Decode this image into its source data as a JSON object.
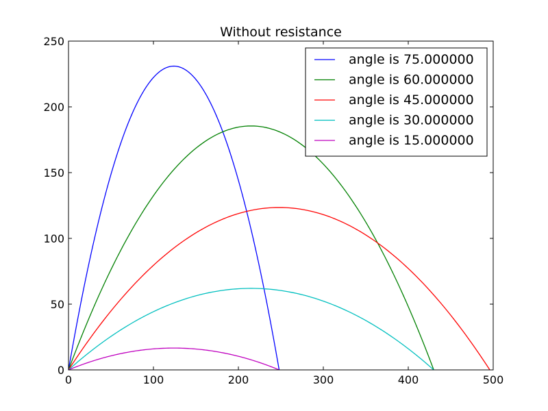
{
  "chart_data": {
    "type": "line",
    "title": "Without resistance",
    "xlabel": "",
    "ylabel": "",
    "xlim": [
      0,
      500
    ],
    "ylim": [
      0,
      250
    ],
    "xticks": [
      0,
      100,
      200,
      300,
      400,
      500
    ],
    "yticks": [
      0,
      50,
      100,
      150,
      200,
      250
    ],
    "grid": false,
    "legend_position": "top-right",
    "series": [
      {
        "name": "angle is 75.000000",
        "color": "#0000ff",
        "angle_deg": 75,
        "range": 248,
        "max_height": 231
      },
      {
        "name": "angle is 60.000000",
        "color": "#008000",
        "angle_deg": 60,
        "range": 430,
        "max_height": 185.5
      },
      {
        "name": "angle is 45.000000",
        "color": "#ff0000",
        "angle_deg": 45,
        "range": 496,
        "max_height": 123.5
      },
      {
        "name": "angle is 30.000000",
        "color": "#00bfbf",
        "angle_deg": 30,
        "range": 430,
        "max_height": 62
      },
      {
        "name": "angle is 15.000000",
        "color": "#bf00bf",
        "angle_deg": 15,
        "range": 248,
        "max_height": 16.6
      }
    ]
  }
}
